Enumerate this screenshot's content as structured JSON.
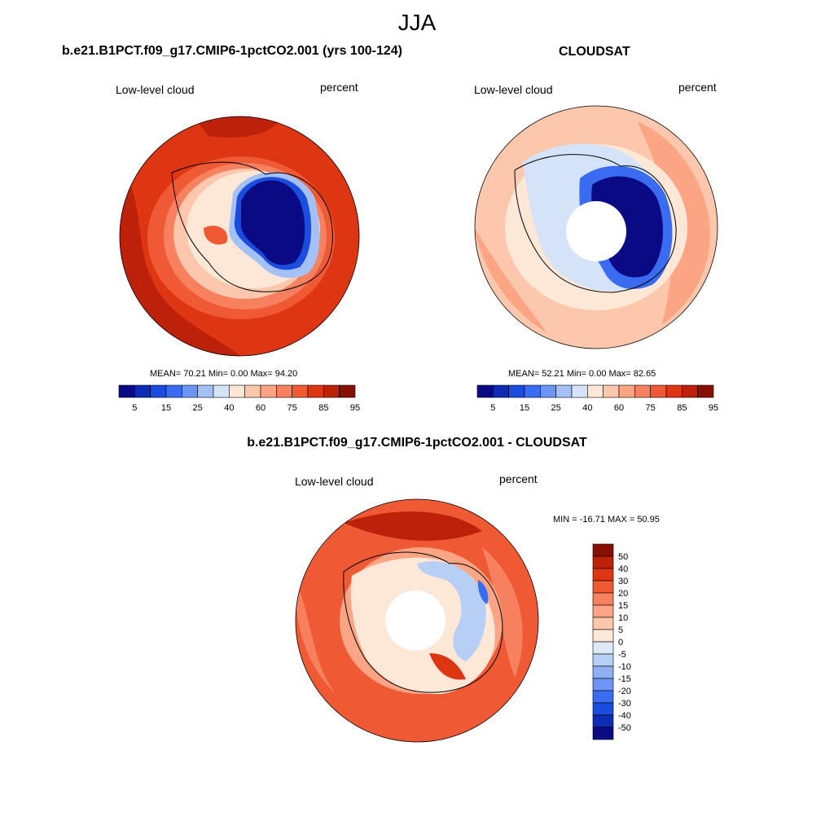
{
  "figure": {
    "season": "JJA",
    "panels": [
      {
        "title": "b.e21.B1PCT.f09_g17.CMIP6-1pctCO2.001 (yrs 100-124)",
        "variable_label": "Low-level cloud",
        "units_label": "percent",
        "stats": "MEAN=  70.21  Min=   0.00  Max=  94.20"
      },
      {
        "title": "CLOUDSAT",
        "variable_label": "Low-level cloud",
        "units_label": "percent",
        "stats": "MEAN=  52.21  Min=   0.00  Max=  82.65"
      },
      {
        "title": "b.e21.B1PCT.f09_g17.CMIP6-1pctCO2.001 - CLOUDSAT",
        "variable_label": "Low-level cloud",
        "units_label": "percent",
        "stats": "MIN = -16.71 MAX =  50.95"
      }
    ]
  },
  "chart_data": [
    {
      "type": "heatmap",
      "projection": "south-polar stereographic",
      "title": "b.e21.B1PCT.f09_g17.CMIP6-1pctCO2.001 (yrs 100-124)",
      "variable": "Low-level cloud",
      "units": "percent",
      "mean": 70.21,
      "min": 0.0,
      "max": 94.2,
      "colorbar_levels": [
        5,
        10,
        15,
        20,
        25,
        30,
        40,
        50,
        60,
        65,
        75,
        80,
        85,
        90,
        95
      ],
      "colorbar_tick_labels": [
        "5",
        "15",
        "25",
        "40",
        "60",
        "75",
        "85",
        "95"
      ],
      "colors": [
        "#0a0a85",
        "#0d2bb5",
        "#1a4ce0",
        "#3a6cf2",
        "#6d95f5",
        "#a4c1f7",
        "#d4e3f7",
        "#fde7d6",
        "#fcc7ac",
        "#fba585",
        "#f7805f",
        "#ef5a35",
        "#de3512",
        "#bd210a",
        "#861004"
      ]
    },
    {
      "type": "heatmap",
      "projection": "south-polar stereographic",
      "title": "CLOUDSAT",
      "variable": "Low-level cloud",
      "units": "percent",
      "mean": 52.21,
      "min": 0.0,
      "max": 82.65,
      "colorbar_levels": [
        5,
        10,
        15,
        20,
        25,
        30,
        40,
        50,
        60,
        65,
        75,
        80,
        85,
        90,
        95
      ],
      "colorbar_tick_labels": [
        "5",
        "15",
        "25",
        "40",
        "60",
        "75",
        "85",
        "95"
      ],
      "colors": [
        "#0a0a85",
        "#0d2bb5",
        "#1a4ce0",
        "#3a6cf2",
        "#6d95f5",
        "#a4c1f7",
        "#d4e3f7",
        "#fde7d6",
        "#fcc7ac",
        "#fba585",
        "#f7805f",
        "#ef5a35",
        "#de3512",
        "#bd210a",
        "#861004"
      ]
    },
    {
      "type": "heatmap",
      "projection": "south-polar stereographic",
      "title": "b.e21.B1PCT.f09_g17.CMIP6-1pctCO2.001 - CLOUDSAT",
      "variable": "Low-level cloud",
      "units": "percent",
      "min": -16.71,
      "max": 50.95,
      "colorbar_tick_labels": [
        "50",
        "40",
        "30",
        "20",
        "15",
        "10",
        "5",
        "0",
        "-5",
        "-10",
        "-15",
        "-20",
        "-30",
        "-40",
        "-50"
      ],
      "colors": [
        "#861004",
        "#bd210a",
        "#de3512",
        "#ef5a35",
        "#f7805f",
        "#fba585",
        "#fcc7ac",
        "#fde7d6",
        "#dde9f7",
        "#b7cff5",
        "#8fb0f2",
        "#6d95f5",
        "#3a6cf2",
        "#1a4ce0",
        "#0d2bb5",
        "#0a0a85"
      ]
    }
  ]
}
